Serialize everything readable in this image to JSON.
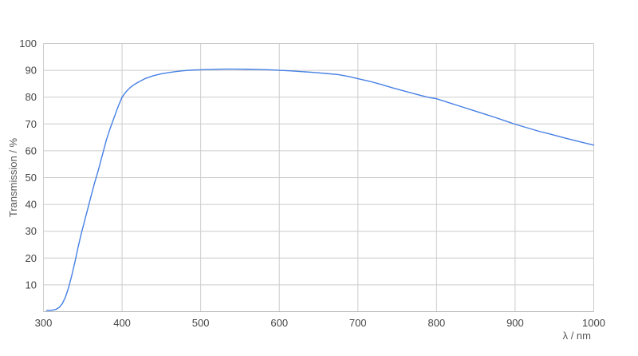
{
  "chart_data": {
    "type": "line",
    "title": "",
    "xlabel": "λ / nm",
    "ylabel": "Transmission / %",
    "xlim": [
      300,
      1000
    ],
    "ylim": [
      0,
      100
    ],
    "x_ticks": [
      300,
      400,
      500,
      600,
      700,
      800,
      900,
      1000
    ],
    "y_ticks": [
      10,
      20,
      30,
      40,
      50,
      60,
      70,
      80,
      90,
      100
    ],
    "grid": true,
    "legend_position": "none",
    "series": [
      {
        "name": "Transmission",
        "color": "#4680e4",
        "points": [
          [
            304,
            0.5
          ],
          [
            308,
            0.5
          ],
          [
            312,
            0.6
          ],
          [
            316,
            0.9
          ],
          [
            320,
            1.6
          ],
          [
            324,
            3.0
          ],
          [
            328,
            5.5
          ],
          [
            332,
            9.0
          ],
          [
            336,
            13.5
          ],
          [
            340,
            18.5
          ],
          [
            344,
            24.0
          ],
          [
            348,
            29.0
          ],
          [
            352,
            33.5
          ],
          [
            356,
            38.0
          ],
          [
            360,
            42.5
          ],
          [
            365,
            48.0
          ],
          [
            370,
            53.0
          ],
          [
            375,
            58.5
          ],
          [
            380,
            64.0
          ],
          [
            385,
            68.5
          ],
          [
            390,
            72.5
          ],
          [
            395,
            76.5
          ],
          [
            400,
            80.0
          ],
          [
            405,
            82.0
          ],
          [
            410,
            83.5
          ],
          [
            415,
            84.6
          ],
          [
            420,
            85.5
          ],
          [
            430,
            87.0
          ],
          [
            440,
            88.0
          ],
          [
            450,
            88.7
          ],
          [
            460,
            89.2
          ],
          [
            470,
            89.6
          ],
          [
            480,
            89.9
          ],
          [
            490,
            90.1
          ],
          [
            500,
            90.2
          ],
          [
            515,
            90.35
          ],
          [
            530,
            90.45
          ],
          [
            545,
            90.45
          ],
          [
            560,
            90.4
          ],
          [
            575,
            90.3
          ],
          [
            590,
            90.15
          ],
          [
            600,
            90.0
          ],
          [
            615,
            89.8
          ],
          [
            630,
            89.5
          ],
          [
            645,
            89.2
          ],
          [
            660,
            88.8
          ],
          [
            675,
            88.4
          ],
          [
            690,
            87.6
          ],
          [
            700,
            86.9
          ],
          [
            715,
            85.9
          ],
          [
            730,
            84.7
          ],
          [
            745,
            83.4
          ],
          [
            760,
            82.2
          ],
          [
            775,
            81.0
          ],
          [
            790,
            79.9
          ],
          [
            800,
            79.4
          ],
          [
            815,
            78.0
          ],
          [
            830,
            76.6
          ],
          [
            845,
            75.2
          ],
          [
            860,
            73.8
          ],
          [
            875,
            72.4
          ],
          [
            890,
            70.9
          ],
          [
            900,
            69.9
          ],
          [
            915,
            68.6
          ],
          [
            930,
            67.3
          ],
          [
            945,
            66.2
          ],
          [
            960,
            65.0
          ],
          [
            975,
            63.9
          ],
          [
            990,
            62.8
          ],
          [
            1000,
            62.1
          ]
        ]
      }
    ]
  },
  "colors": {
    "background": "#ffffff",
    "grid": "#cccccc",
    "axis_line": "#b3b3b3",
    "tick_text": "#444444",
    "axis_title_text": "#595959",
    "series_blue": "#4680e4"
  }
}
